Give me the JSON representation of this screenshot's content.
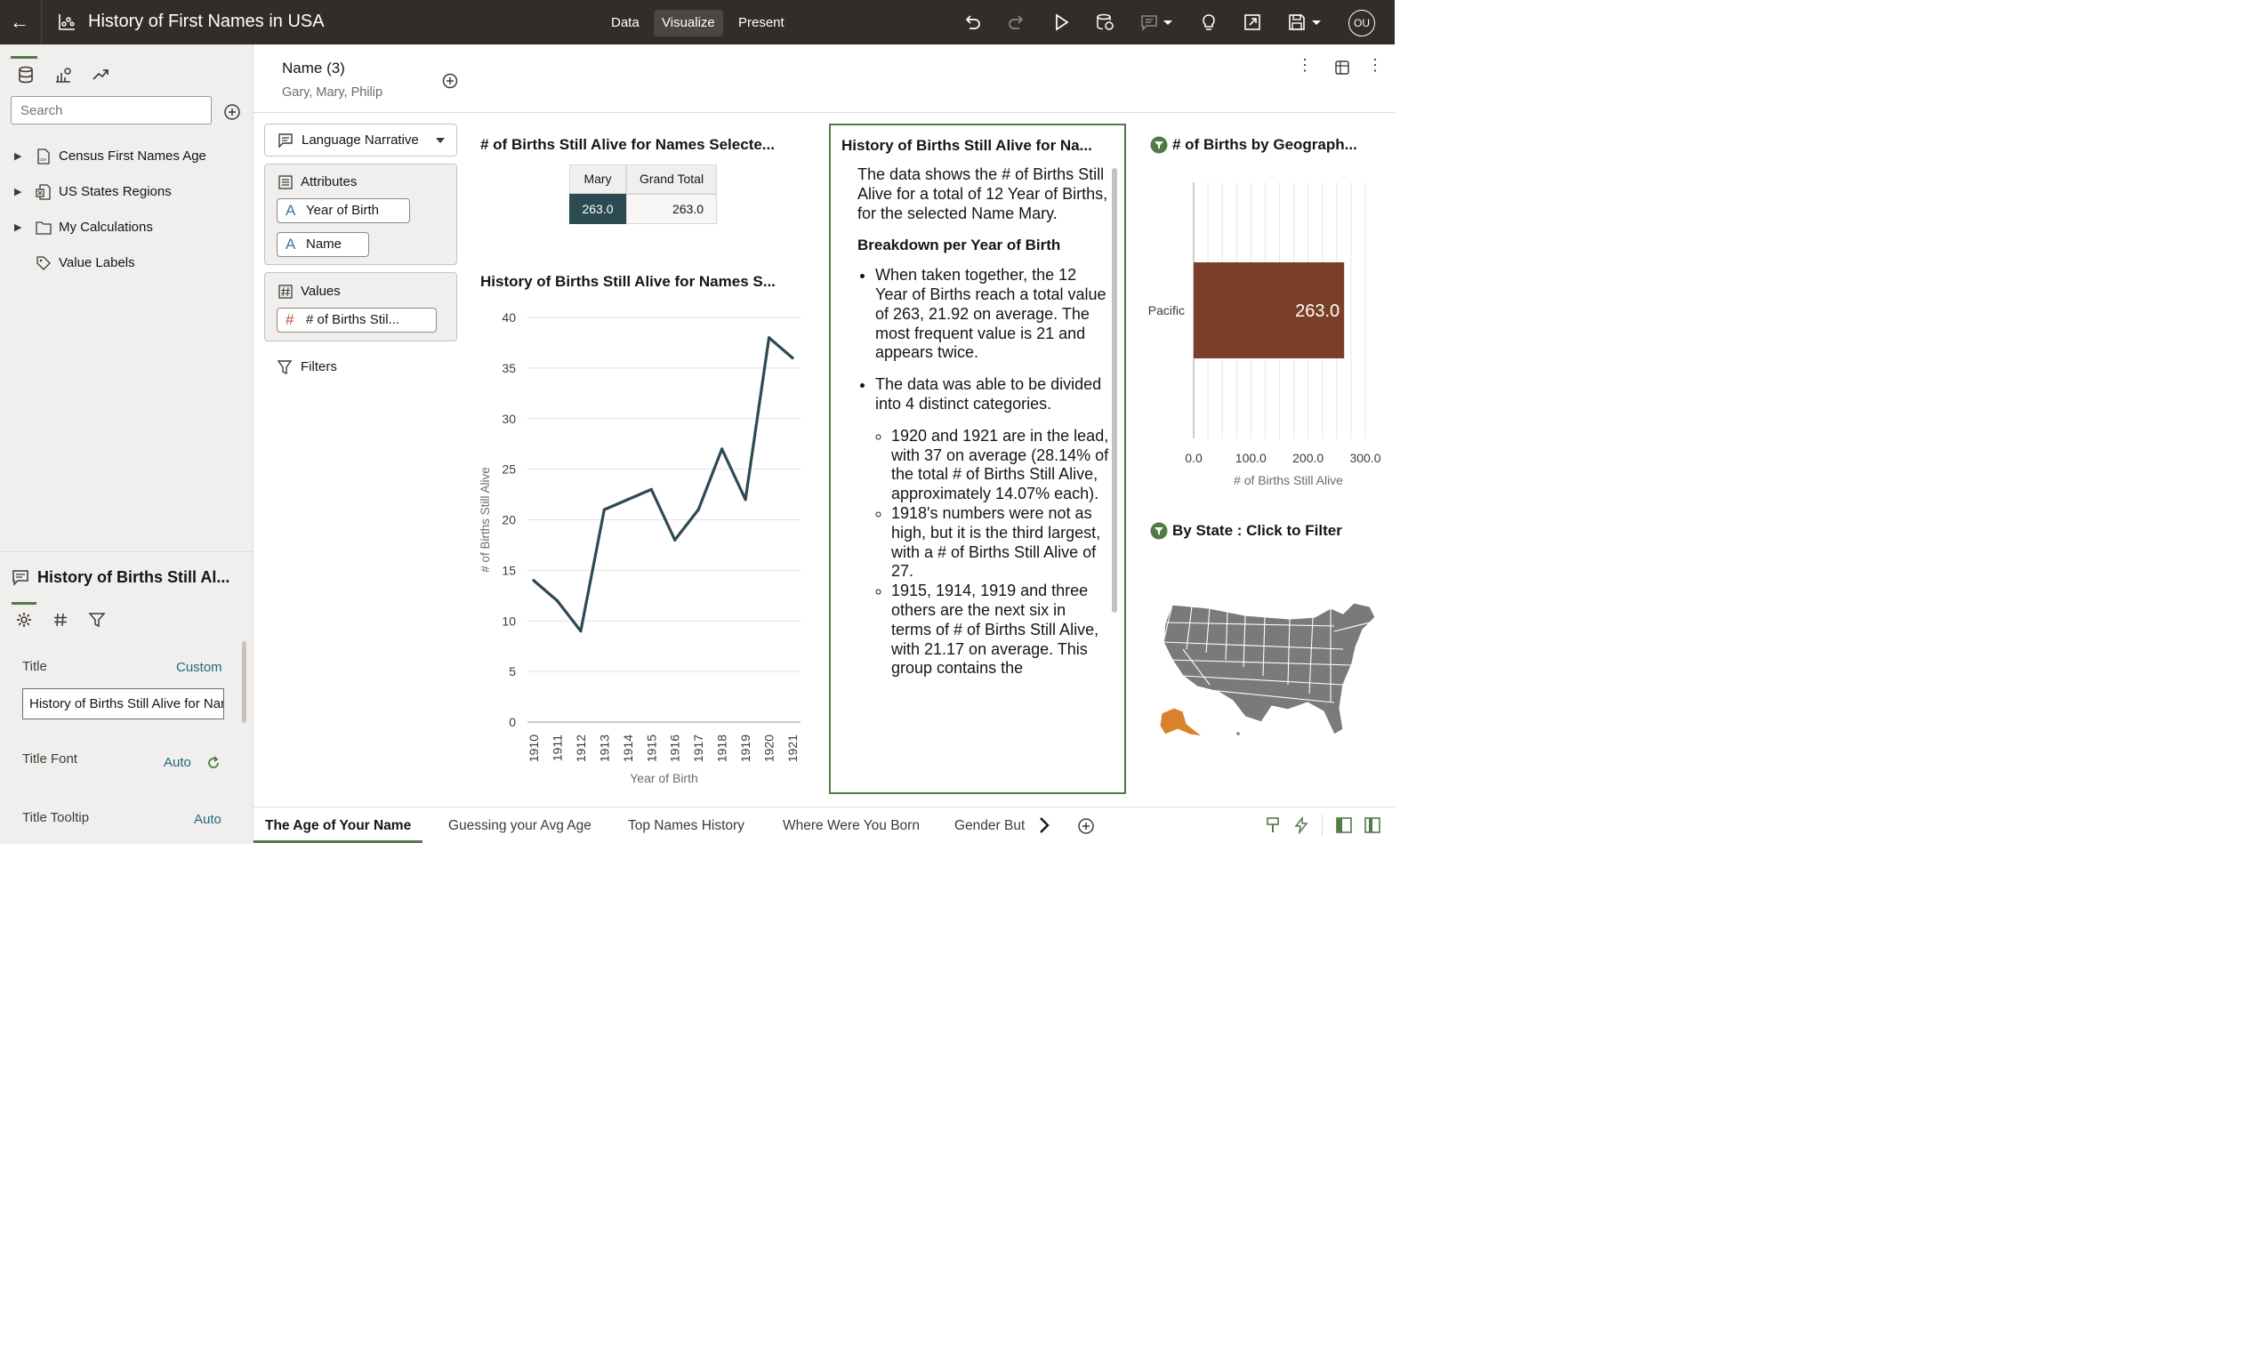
{
  "header": {
    "title": "History of First Names in USA",
    "modes": [
      "Data",
      "Visualize",
      "Present"
    ],
    "active_mode": "Visualize",
    "user_initials": "OU"
  },
  "left_panel": {
    "search_placeholder": "Search",
    "tree": [
      {
        "label": "Census First Names Age",
        "icon": "csv-file-icon",
        "expandable": true
      },
      {
        "label": "US States Regions",
        "icon": "excel-file-icon",
        "expandable": true
      },
      {
        "label": "My Calculations",
        "icon": "folder-icon",
        "expandable": true
      },
      {
        "label": "Value Labels",
        "icon": "tag-icon",
        "expandable": false
      }
    ]
  },
  "properties": {
    "viz_title": "History of Births Still Al...",
    "title_label": "Title",
    "title_mode": "Custom",
    "title_value": "History of Births Still Alive for Names Selected",
    "title_font_label": "Title Font",
    "title_font_value": "Auto",
    "title_tooltip_label": "Title Tooltip",
    "title_tooltip_value": "Auto"
  },
  "filter_bar": {
    "name": "Name (3)",
    "values": "Gary, Mary, Philip"
  },
  "grammar": {
    "viz_type": "Language Narrative",
    "attributes_label": "Attributes",
    "attributes": [
      "Year of Birth",
      "Name"
    ],
    "values_label": "Values",
    "values": [
      "# of Births Stil..."
    ],
    "filters_label": "Filters"
  },
  "pivot": {
    "title": "# of Births Still Alive for Names Selecte...",
    "col_headers": [
      "Mary",
      "Grand Total"
    ],
    "row": [
      "263.0",
      "263.0"
    ]
  },
  "line_chart": {
    "title": "History of Births Still Alive for Names S..."
  },
  "chart_data": [
    {
      "type": "line",
      "title": "History of Births Still Alive for Names S...",
      "xlabel": "Year of Birth",
      "ylabel": "# of Births Still Alive",
      "x": [
        "1910",
        "1911",
        "1912",
        "1913",
        "1914",
        "1915",
        "1916",
        "1917",
        "1918",
        "1919",
        "1920",
        "1921"
      ],
      "series": [
        {
          "values": [
            14,
            12,
            9,
            21,
            22,
            23,
            18,
            21,
            27,
            22,
            38,
            36
          ]
        }
      ],
      "ylim": [
        0,
        40
      ],
      "yticks": [
        "0",
        "5",
        "10",
        "15",
        "20",
        "25",
        "30",
        "35",
        "40"
      ],
      "grid": true,
      "color": "#2c4a52"
    },
    {
      "type": "bar",
      "orientation": "horizontal",
      "title": "# of Births by Geograph...",
      "categories": [
        "Pacific"
      ],
      "values": [
        263.0
      ],
      "data_labels": [
        "263.0"
      ],
      "xlabel": "# of Births Still Alive",
      "xlim": [
        0,
        300
      ],
      "xticks": [
        "0.0",
        "100.0",
        "200.0",
        "300.0"
      ],
      "color": "#7a3f26"
    }
  ],
  "narrative": {
    "title": "History of Births Still Alive for Na...",
    "intro": "The data shows the # of Births Still Alive for a total of 12 Year of Births, for the selected Name Mary.",
    "breakdown_heading": "Breakdown per Year of Birth",
    "bullet1": "When taken together, the 12 Year of Births reach a total value of 263, 21.92 on average. The most frequent value is 21 and appears twice.",
    "bullet2": "The data was able to be divided into 4 distinct categories.",
    "sub1": "1920 and 1921 are in the lead, with 37 on average (28.14% of the total # of Births Still Alive, approximately 14.07% each).",
    "sub2": "1918's numbers were not as high, but it is the third largest, with a # of Births Still Alive of 27.",
    "sub3": "1915, 1914, 1919 and three others are the next six in terms of # of Births Still Alive, with 21.17 on average. This group contains the"
  },
  "map": {
    "title": "By State : Click to Filter",
    "highlight_color": "#d9822b",
    "base_color": "#7a7a7a"
  },
  "tabs": [
    "The Age of Your Name",
    "Guessing your Avg Age",
    "Top Names History",
    "Where Were You Born",
    "Gender But"
  ],
  "active_tab": "The Age of Your Name"
}
